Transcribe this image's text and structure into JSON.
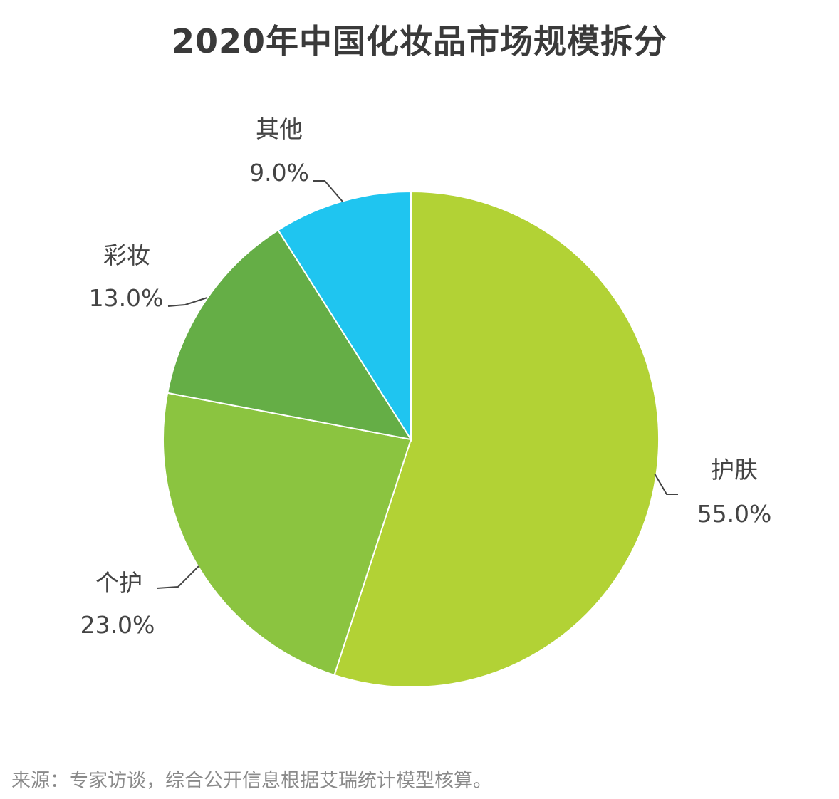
{
  "chart_data": {
    "type": "pie",
    "title": "2020年中国化妆品市场规模拆分",
    "slices": [
      {
        "name": "护肤",
        "value": 55.0,
        "label": "55.0%",
        "color": "#b2d235"
      },
      {
        "name": "个护",
        "value": 23.0,
        "label": "23.0%",
        "color": "#8bc440"
      },
      {
        "name": "彩妆",
        "value": 13.0,
        "label": "13.0%",
        "color": "#65ae46"
      },
      {
        "name": "其他",
        "value": 9.0,
        "label": "9.0%",
        "color": "#1fc5f0"
      }
    ],
    "start_angle_deg": 0,
    "direction": "clockwise",
    "legend": "none"
  },
  "source_note": "来源：专家访谈，综合公开信息根据艾瑞统计模型核算。"
}
